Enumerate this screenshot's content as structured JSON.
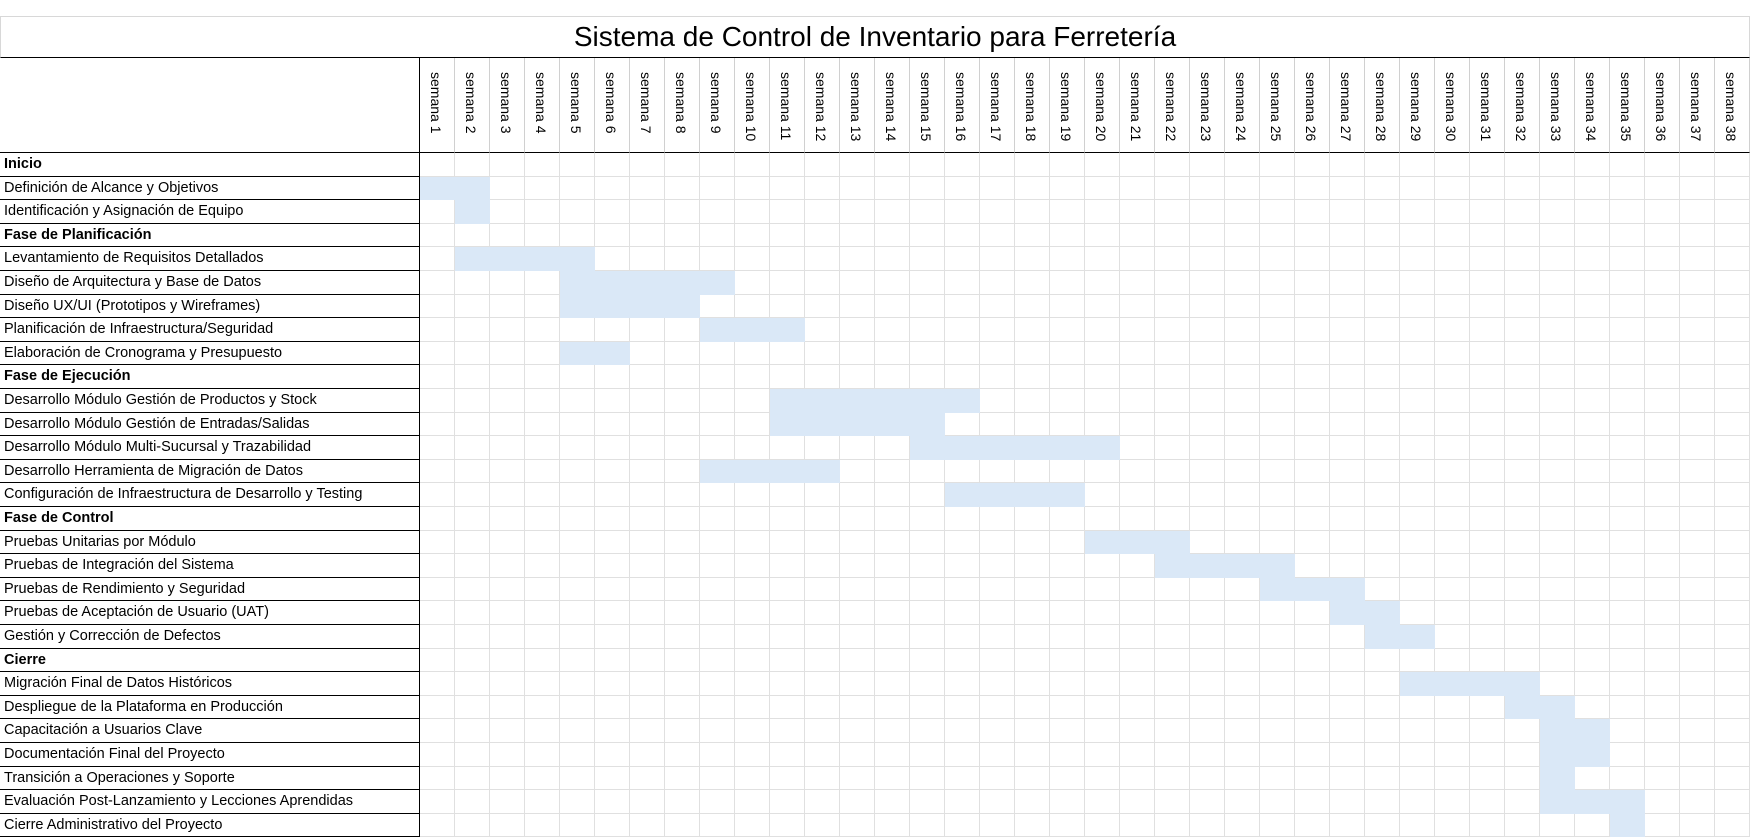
{
  "title": "Sistema de Control de Inventario para Ferretería",
  "week_prefix": "semana",
  "weeks": [
    "semana 1",
    "semana 2",
    "semana 3",
    "semana 4",
    "semana 5",
    "semana 6",
    "semana 7",
    "semana 8",
    "semana 9",
    "semana 10",
    "semana 11",
    "semana 12",
    "semana 13",
    "semana 14",
    "semana 15",
    "semana 16",
    "semana 17",
    "semana 18",
    "semana 19",
    "semana 20",
    "semana 21",
    "semana 22",
    "semana 23",
    "semana 24",
    "semana 25",
    "semana 26",
    "semana 27",
    "semana 28",
    "semana 29",
    "semana 30",
    "semana 31",
    "semana 32",
    "semana 33",
    "semana 34",
    "semana 35",
    "semana 36",
    "semana 37",
    "semana 38"
  ],
  "bar_color": "#dae8f7",
  "rows": [
    {
      "label": "Inicio",
      "phase": true
    },
    {
      "label": "Definición de Alcance y Objetivos",
      "start": 1,
      "end": 2
    },
    {
      "label": "Identificación y Asignación de Equipo",
      "start": 2,
      "end": 2
    },
    {
      "label": "Fase de Planificación",
      "phase": true
    },
    {
      "label": "Levantamiento de Requisitos Detallados",
      "start": 2,
      "end": 5
    },
    {
      "label": "Diseño de Arquitectura y Base de Datos",
      "start": 5,
      "end": 9
    },
    {
      "label": "Diseño UX/UI (Prototipos y Wireframes)",
      "start": 5,
      "end": 8
    },
    {
      "label": "Planificación de Infraestructura/Seguridad",
      "start": 9,
      "end": 11
    },
    {
      "label": "Elaboración de Cronograma y Presupuesto",
      "start": 5,
      "end": 6
    },
    {
      "label": "Fase de Ejecución",
      "phase": true
    },
    {
      "label": "Desarrollo Módulo Gestión de Productos y Stock",
      "start": 11,
      "end": 16
    },
    {
      "label": "Desarrollo Módulo Gestión de Entradas/Salidas",
      "start": 11,
      "end": 15
    },
    {
      "label": "Desarrollo Módulo Multi-Sucursal y Trazabilidad",
      "start": 15,
      "end": 20
    },
    {
      "label": "Desarrollo Herramienta de Migración de Datos",
      "start": 9,
      "end": 12
    },
    {
      "label": "Configuración de Infraestructura de Desarrollo y Testing",
      "start": 16,
      "end": 19
    },
    {
      "label": "Fase de Control",
      "phase": true
    },
    {
      "label": "Pruebas Unitarias por Módulo",
      "start": 20,
      "end": 22
    },
    {
      "label": "Pruebas de Integración del Sistema",
      "start": 22,
      "end": 25
    },
    {
      "label": "Pruebas de Rendimiento y Seguridad",
      "start": 25,
      "end": 27
    },
    {
      "label": "Pruebas de Aceptación de Usuario (UAT)",
      "start": 27,
      "end": 28
    },
    {
      "label": "Gestión y Corrección de Defectos",
      "start": 28,
      "end": 29
    },
    {
      "label": "Cierre",
      "phase": true
    },
    {
      "label": "Migración Final de Datos Históricos",
      "start": 29,
      "end": 32
    },
    {
      "label": "Despliegue de la Plataforma en Producción",
      "start": 32,
      "end": 33
    },
    {
      "label": "Capacitación a Usuarios Clave",
      "start": 33,
      "end": 34
    },
    {
      "label": "Documentación Final del Proyecto",
      "start": 33,
      "end": 34
    },
    {
      "label": "Transición a Operaciones y Soporte",
      "start": 33,
      "end": 33
    },
    {
      "label": "Evaluación Post-Lanzamiento y Lecciones Aprendidas",
      "start": 33,
      "end": 35
    },
    {
      "label": "Cierre Administrativo del Proyecto",
      "start": 35,
      "end": 35
    }
  ]
}
